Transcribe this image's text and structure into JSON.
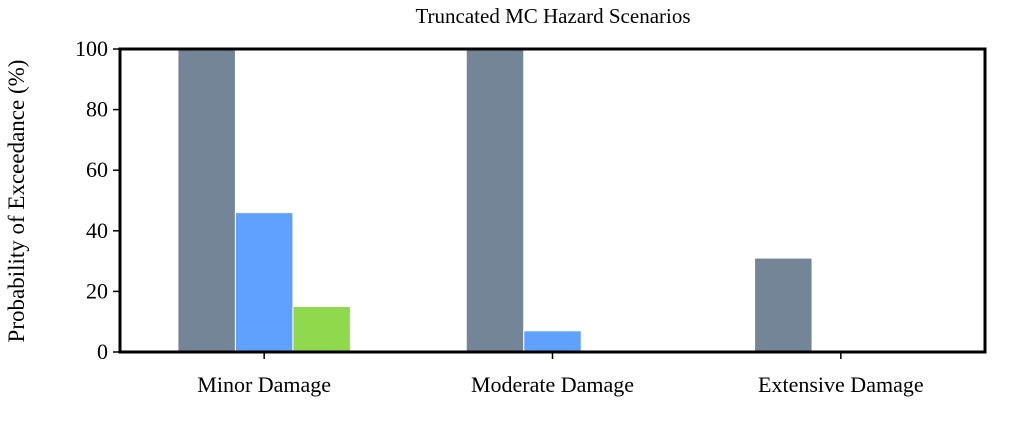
{
  "chart_data": {
    "type": "bar",
    "title": "Truncated MC Hazard Scenarios",
    "xlabel": "",
    "ylabel": "Probability of Exceedance (%)",
    "ylim": [
      0,
      100
    ],
    "yticks": [
      0,
      20,
      40,
      60,
      80,
      100
    ],
    "grid": false,
    "legend": "none",
    "categories": [
      "Minor Damage",
      "Moderate Damage",
      "Extensive Damage"
    ],
    "series": [
      {
        "color": "#738596",
        "values": [
          100,
          100,
          31
        ]
      },
      {
        "color": "#60a0ff",
        "values": [
          46,
          7,
          0
        ]
      },
      {
        "color": "#90d94c",
        "values": [
          15,
          0,
          0
        ]
      }
    ]
  }
}
